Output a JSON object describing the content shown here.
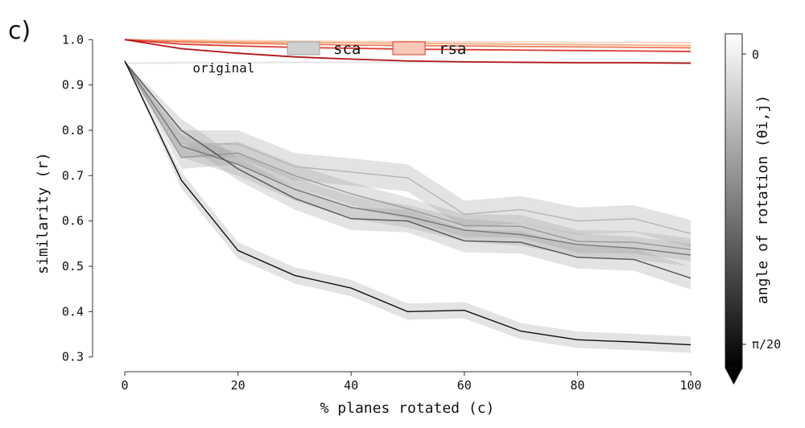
{
  "panel_label": "c)",
  "chart_data": {
    "type": "line",
    "xlabel": "% planes rotated (c)",
    "ylabel": "similarity (r)",
    "xlim": [
      0,
      100
    ],
    "ylim": [
      0.28,
      1.02
    ],
    "xticks": [
      0,
      20,
      40,
      60,
      80,
      100
    ],
    "yticks": [
      0.3,
      0.4,
      0.5,
      0.6,
      0.7,
      0.8,
      0.9,
      1.0
    ],
    "ytick_labels": [
      "0.3",
      "0.4",
      "0.5",
      "0.6",
      "0.7",
      "0.8",
      "0.9",
      "1.0"
    ],
    "xtick_labels": [
      "0",
      "20",
      "40",
      "60",
      "80",
      "100"
    ],
    "x": [
      0,
      10,
      20,
      30,
      40,
      50,
      60,
      70,
      80,
      90,
      100
    ],
    "legend": {
      "placement": "top-center",
      "entries": [
        {
          "label": "sca",
          "color": "#d0d0d0",
          "edge": "#a0a0a0"
        },
        {
          "label": "rsa",
          "color": "#f9c8b8",
          "edge": "#d63a2a"
        }
      ]
    },
    "annotations": [
      {
        "text": "original",
        "x": 12,
        "y": 0.928
      }
    ],
    "colorbar": {
      "label": "angle of rotation (θi,j)",
      "ticks": [
        "0",
        "π/20"
      ],
      "colors": [
        "#ffffff",
        "#000000"
      ]
    },
    "original_line": {
      "values": [
        0.948,
        0.949,
        0.949,
        0.95,
        0.95,
        0.95,
        0.95,
        0.95,
        0.95,
        0.95,
        0.95
      ],
      "color": "#e6e6e6"
    },
    "sca_series": [
      {
        "color": "#111111",
        "band": 0.018,
        "values": [
          0.953,
          0.69,
          0.535,
          0.48,
          0.452,
          0.4,
          0.403,
          0.357,
          0.338,
          0.333,
          0.327
        ]
      },
      {
        "color": "#555555",
        "band": 0.025,
        "values": [
          0.951,
          0.8,
          0.715,
          0.65,
          0.605,
          0.6,
          0.556,
          0.553,
          0.52,
          0.515,
          0.474
        ]
      },
      {
        "color": "#777777",
        "band": 0.025,
        "values": [
          0.951,
          0.765,
          0.725,
          0.67,
          0.63,
          0.61,
          0.58,
          0.57,
          0.548,
          0.54,
          0.525
        ]
      },
      {
        "color": "#999999",
        "band": 0.025,
        "values": [
          0.951,
          0.74,
          0.75,
          0.7,
          0.66,
          0.627,
          0.59,
          0.588,
          0.555,
          0.553,
          0.537
        ]
      },
      {
        "color": "#b5b5b5",
        "band": 0.03,
        "values": [
          0.951,
          0.77,
          0.77,
          0.72,
          0.708,
          0.695,
          0.615,
          0.625,
          0.6,
          0.605,
          0.572
        ]
      }
    ],
    "rsa_series": [
      {
        "color": "#b01616",
        "values": [
          1.0,
          0.98,
          0.97,
          0.962,
          0.957,
          0.953,
          0.951,
          0.95,
          0.949,
          0.949,
          0.948
        ]
      },
      {
        "color": "#dc3a2e",
        "values": [
          1.0,
          0.99,
          0.986,
          0.983,
          0.981,
          0.979,
          0.978,
          0.977,
          0.976,
          0.975,
          0.974
        ]
      },
      {
        "color": "#ee7a55",
        "values": [
          1.0,
          0.995,
          0.992,
          0.99,
          0.988,
          0.987,
          0.986,
          0.985,
          0.984,
          0.983,
          0.982
        ]
      },
      {
        "color": "#f5aa82",
        "values": [
          1.0,
          0.997,
          0.995,
          0.994,
          0.993,
          0.992,
          0.991,
          0.99,
          0.989,
          0.988,
          0.987
        ]
      },
      {
        "color": "#fbd5bd",
        "values": [
          1.0,
          0.999,
          0.998,
          0.997,
          0.996,
          0.996,
          0.995,
          0.995,
          0.994,
          0.994,
          0.993
        ]
      }
    ]
  }
}
